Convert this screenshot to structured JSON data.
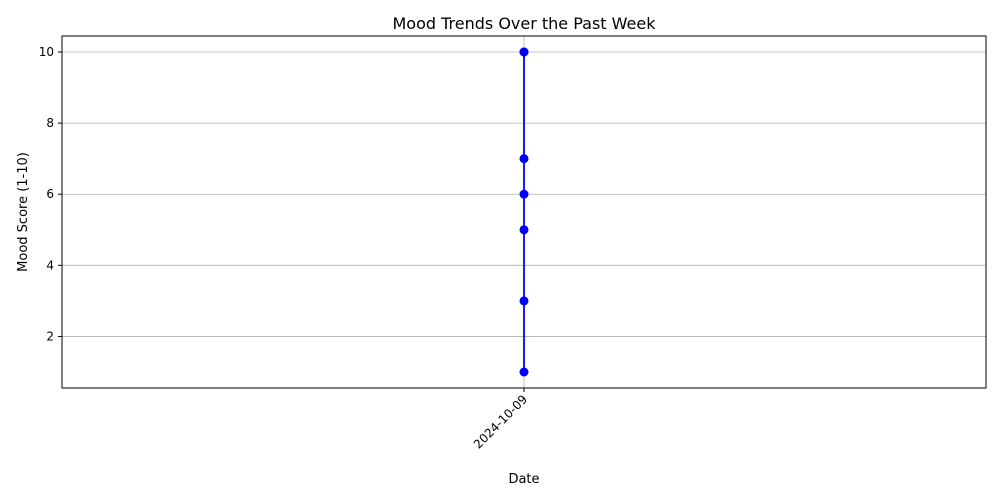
{
  "chart_data": {
    "type": "line",
    "title": "Mood Trends Over the Past Week",
    "xlabel": "Date",
    "ylabel": "Mood Score (1-10)",
    "x_categories": [
      "2024-10-09"
    ],
    "series": [
      {
        "x": [
          "2024-10-09",
          "2024-10-09",
          "2024-10-09",
          "2024-10-09",
          "2024-10-09",
          "2024-10-09",
          "2024-10-09"
        ],
        "y": [
          1,
          3,
          5,
          6,
          7,
          10,
          10
        ],
        "marker": "circle",
        "color": "#0000ff"
      }
    ],
    "ylim": [
      0.55,
      10.45
    ],
    "yticks": [
      2,
      4,
      6,
      8,
      10
    ],
    "grid": true,
    "legend": "none",
    "xtick_rotation_deg": 45
  }
}
